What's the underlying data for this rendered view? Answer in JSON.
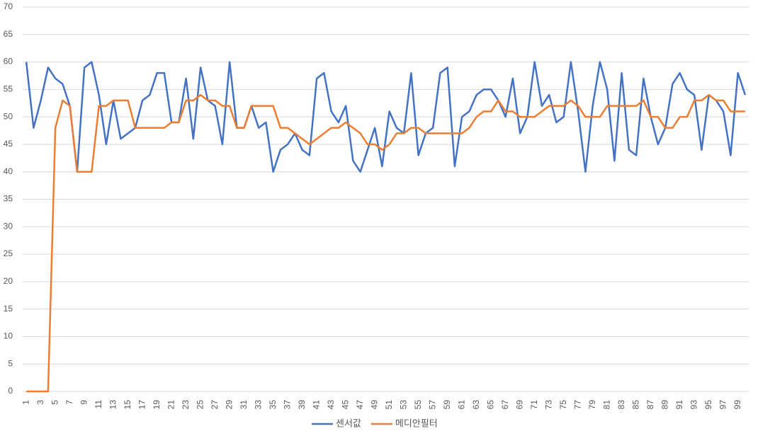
{
  "chart_data": {
    "type": "line",
    "categories": [
      1,
      null,
      3,
      null,
      5,
      null,
      7,
      null,
      9,
      null,
      11,
      null,
      13,
      null,
      15,
      null,
      17,
      null,
      19,
      null,
      21,
      null,
      23,
      null,
      25,
      null,
      27,
      null,
      29,
      null,
      31,
      null,
      33,
      null,
      35,
      null,
      37,
      null,
      39,
      null,
      41,
      null,
      43,
      null,
      45,
      null,
      47,
      null,
      49,
      null,
      51,
      null,
      53,
      null,
      55,
      null,
      57,
      null,
      59,
      null,
      61,
      null,
      63,
      null,
      65,
      null,
      67,
      null,
      69,
      null,
      71,
      null,
      73,
      null,
      75,
      null,
      77,
      null,
      79,
      null,
      81,
      null,
      83,
      null,
      85,
      null,
      87,
      null,
      89,
      null,
      91,
      null,
      93,
      null,
      95,
      null,
      97,
      null,
      99,
      null
    ],
    "series": [
      {
        "name": "센서값",
        "color": "#4472c4",
        "values": [
          60,
          48,
          53,
          59,
          57,
          56,
          52,
          40,
          59,
          60,
          54,
          45,
          53,
          46,
          47,
          48,
          53,
          54,
          58,
          58,
          49,
          49,
          57,
          46,
          59,
          53,
          52,
          45,
          60,
          48,
          48,
          52,
          48,
          49,
          40,
          44,
          45,
          47,
          44,
          43,
          57,
          58,
          51,
          49,
          52,
          42,
          40,
          44,
          48,
          41,
          51,
          48,
          47,
          58,
          43,
          47,
          48,
          58,
          59,
          41,
          50,
          51,
          54,
          55,
          55,
          53,
          50,
          57,
          47,
          50,
          60,
          52,
          54,
          49,
          50,
          60,
          51,
          40,
          52,
          60,
          55,
          42,
          58,
          44,
          43,
          57,
          50,
          45,
          48,
          56,
          58,
          55,
          54,
          44,
          54,
          53,
          51,
          43,
          58,
          54
        ]
      },
      {
        "name": "메디안필터",
        "color": "#ed7d31",
        "values": [
          0,
          0,
          0,
          0,
          48,
          53,
          52,
          40,
          40,
          40,
          52,
          52,
          53,
          53,
          53,
          48,
          48,
          48,
          48,
          48,
          49,
          49,
          53,
          53,
          54,
          53,
          53,
          52,
          52,
          48,
          48,
          52,
          52,
          52,
          52,
          48,
          48,
          47,
          46,
          45,
          46,
          47,
          48,
          48,
          49,
          48,
          47,
          45,
          45,
          44,
          45,
          47,
          47,
          48,
          48,
          47,
          47,
          47,
          47,
          47,
          47,
          48,
          50,
          51,
          51,
          53,
          51,
          51,
          50,
          50,
          50,
          51,
          52,
          52,
          52,
          53,
          52,
          50,
          50,
          50,
          52,
          52,
          52,
          52,
          52,
          53,
          50,
          50,
          48,
          48,
          50,
          50,
          53,
          53,
          54,
          53,
          53,
          51,
          51,
          51
        ]
      }
    ],
    "ylim": [
      0,
      70
    ],
    "yticks": [
      0,
      5,
      10,
      15,
      20,
      25,
      30,
      35,
      40,
      45,
      50,
      55,
      60,
      65,
      70
    ],
    "grid": true,
    "legend": "bottom"
  }
}
